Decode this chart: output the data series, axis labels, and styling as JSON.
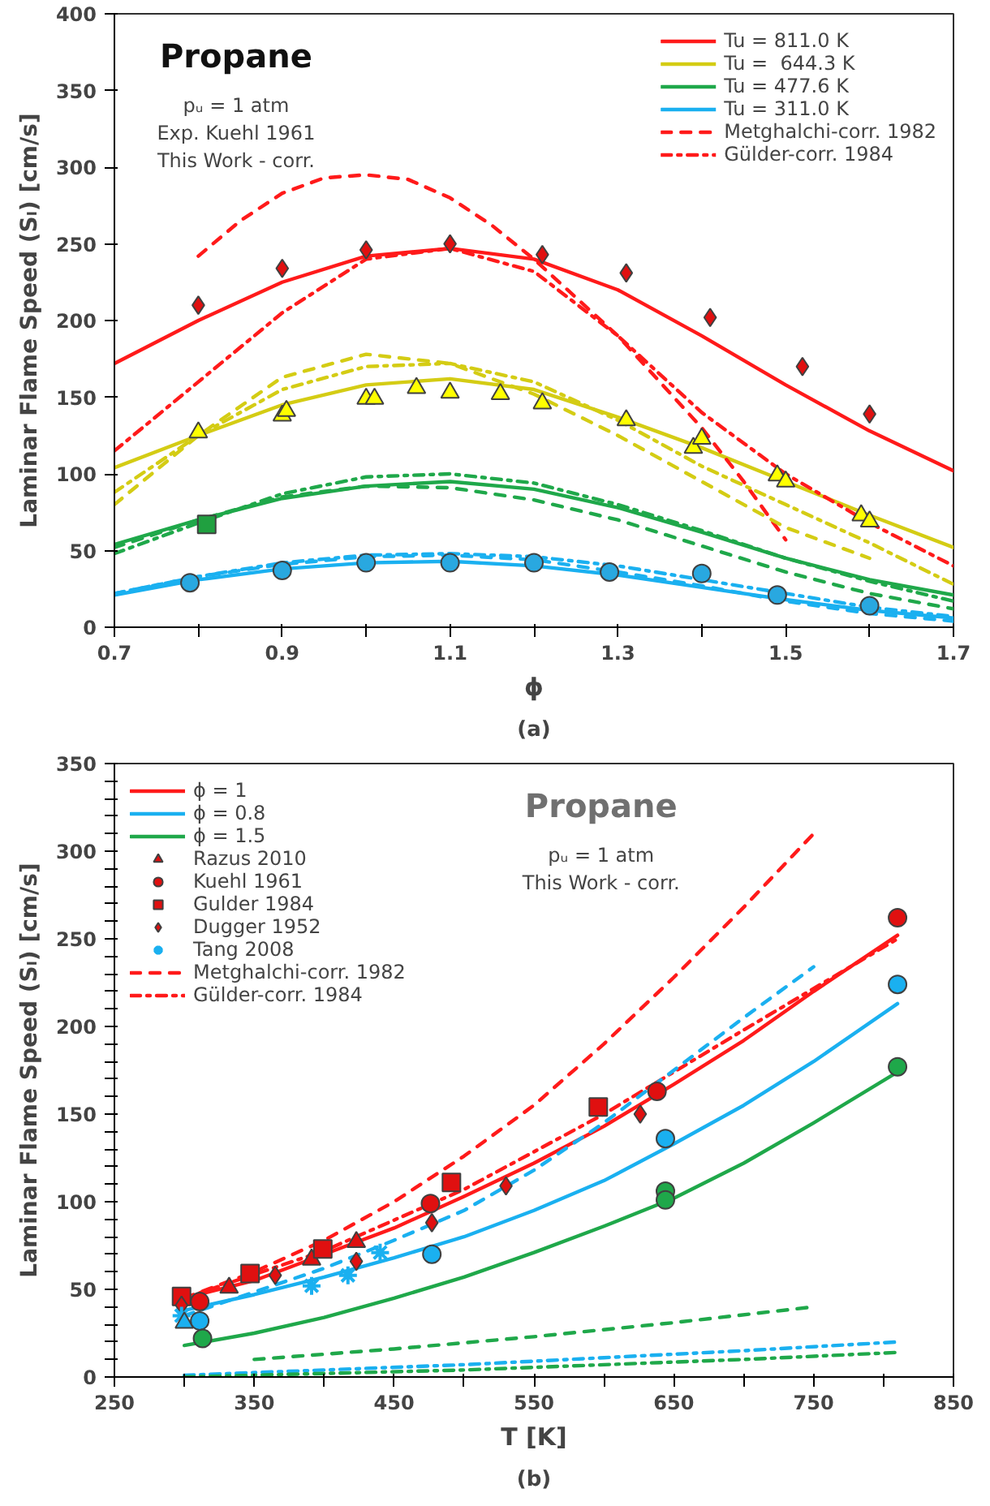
{
  "chart_data": [
    {
      "type": "line",
      "title": "Propane",
      "subtitle": "pᵤ = 1 atm",
      "xlabel": "ϕ",
      "ylabel": "Laminar Flame Speed (Sₗ) [cm/s]",
      "legend": "top right",
      "annotations": [
        "Exp. Kuehl 1961",
        "This Work - corr.",
        "(a)"
      ],
      "xlim": [
        0.7,
        1.7
      ],
      "ylim": [
        0,
        400
      ],
      "xticks": [
        0.7,
        {
          "value": 0.8,
          "label": null
        },
        0.9,
        {
          "value": 1.0,
          "label": null
        },
        1.1,
        {
          "value": 1.2,
          "label": null
        },
        1.3,
        {
          "value": 1.4,
          "label": null
        },
        1.5,
        {
          "value": 1.6,
          "label": null
        },
        1.7
      ],
      "yticks": [
        0,
        50,
        100,
        150,
        200,
        250,
        300,
        350,
        400
      ],
      "series": [
        {
          "name": "Tu = 811.0 K",
          "color": "#ff1a1a",
          "line_style": "solid",
          "x": [
            0.7,
            0.8,
            0.9,
            1.0,
            1.1,
            1.2,
            1.3,
            1.4,
            1.5,
            1.6,
            1.7
          ],
          "values": [
            172,
            200,
            225,
            242,
            247,
            240,
            220,
            190,
            158,
            128,
            102
          ]
        },
        {
          "name": "Tu =  644.3 K",
          "color": "#d4cc14",
          "line_style": "solid",
          "x": [
            0.7,
            0.8,
            0.9,
            1.0,
            1.1,
            1.2,
            1.3,
            1.4,
            1.5,
            1.6,
            1.7
          ],
          "values": [
            104,
            125,
            145,
            158,
            162,
            155,
            137,
            117,
            95,
            73,
            52
          ]
        },
        {
          "name": "Tu = 477.6 K",
          "color": "#1fa84a",
          "line_style": "solid",
          "x": [
            0.7,
            0.8,
            0.9,
            1.0,
            1.1,
            1.2,
            1.3,
            1.4,
            1.5,
            1.6,
            1.7
          ],
          "values": [
            54,
            70,
            84,
            92,
            95,
            90,
            78,
            62,
            45,
            31,
            21
          ]
        },
        {
          "name": "Tu = 311.0 K",
          "color": "#1ab0f0",
          "line_style": "solid",
          "x": [
            0.7,
            0.8,
            0.9,
            1.0,
            1.1,
            1.2,
            1.3,
            1.4,
            1.5,
            1.6,
            1.7
          ],
          "values": [
            21,
            31,
            38,
            42,
            43,
            40,
            34,
            26,
            18,
            11,
            6
          ]
        },
        {
          "name": "Metghalchi-corr. 1982",
          "color": "#ff1a1a",
          "line_style": "dashed",
          "x": [
            0.8,
            0.85,
            0.9,
            0.95,
            1.0,
            1.05,
            1.1,
            1.15,
            1.2,
            1.25,
            1.3,
            1.35,
            1.4,
            1.45,
            1.5
          ],
          "values": [
            242,
            265,
            283,
            293,
            295,
            292,
            280,
            262,
            240,
            215,
            190,
            160,
            130,
            95,
            57
          ]
        },
        {
          "name": "Gülder-corr. 1984",
          "color": "#ff1a1a",
          "line_style": "dashdot",
          "x": [
            0.7,
            0.8,
            0.9,
            1.0,
            1.1,
            1.2,
            1.3,
            1.4,
            1.5,
            1.6,
            1.7
          ],
          "values": [
            115,
            160,
            205,
            240,
            247,
            232,
            190,
            140,
            100,
            68,
            40
          ]
        },
        {
          "color": "#d4cc14",
          "line_style": "dashed",
          "x": [
            0.7,
            0.8,
            0.9,
            1.0,
            1.1,
            1.2,
            1.3,
            1.4,
            1.5,
            1.6
          ],
          "values": [
            80,
            125,
            163,
            178,
            172,
            152,
            125,
            95,
            65,
            45
          ]
        },
        {
          "color": "#d4cc14",
          "line_style": "dashdot",
          "x": [
            0.7,
            0.8,
            0.9,
            1.0,
            1.1,
            1.2,
            1.3,
            1.4,
            1.5,
            1.6,
            1.7
          ],
          "values": [
            88,
            125,
            155,
            170,
            172,
            160,
            135,
            105,
            80,
            55,
            28
          ]
        },
        {
          "color": "#1fa84a",
          "line_style": "dashed",
          "x": [
            0.7,
            0.8,
            0.9,
            1.0,
            1.1,
            1.2,
            1.3,
            1.4,
            1.5,
            1.6,
            1.7
          ],
          "values": [
            52,
            70,
            85,
            92,
            91,
            83,
            70,
            53,
            36,
            22,
            12
          ]
        },
        {
          "color": "#1fa84a",
          "line_style": "dashdot",
          "x": [
            0.7,
            0.8,
            0.9,
            1.0,
            1.1,
            1.2,
            1.3,
            1.4,
            1.5,
            1.6,
            1.7
          ],
          "values": [
            48,
            68,
            87,
            98,
            100,
            94,
            80,
            63,
            45,
            30,
            17
          ]
        },
        {
          "color": "#1ab0f0",
          "line_style": "dashed",
          "x": [
            0.7,
            0.8,
            0.9,
            1.0,
            1.1,
            1.2,
            1.3,
            1.4,
            1.5,
            1.6,
            1.7
          ],
          "values": [
            22,
            33,
            41,
            46,
            47,
            44,
            36,
            27,
            17,
            9,
            4
          ]
        },
        {
          "color": "#1ab0f0",
          "line_style": "dashdot",
          "x": [
            0.7,
            0.8,
            0.9,
            1.0,
            1.1,
            1.2,
            1.3,
            1.4,
            1.5,
            1.6,
            1.7
          ],
          "values": [
            22,
            33,
            42,
            47,
            48,
            46,
            40,
            31,
            22,
            13,
            7
          ]
        },
        {
          "type": "scatter",
          "marker": "diamond",
          "color": "#e01010",
          "x": [
            0.8,
            0.9,
            1.0,
            1.1,
            1.21,
            1.31,
            1.41,
            1.52,
            1.6
          ],
          "values": [
            210,
            234,
            246,
            250,
            243,
            231,
            202,
            170,
            139
          ]
        },
        {
          "type": "scatter",
          "marker": "triangle",
          "color": "#ffff00",
          "x": [
            0.8,
            0.9,
            0.905,
            1.0,
            1.01,
            1.06,
            1.1,
            1.16,
            1.21,
            1.31,
            1.39,
            1.4,
            1.49,
            1.5,
            1.59,
            1.6
          ],
          "values": [
            127,
            138,
            141,
            149,
            149,
            156,
            153,
            152,
            146,
            135,
            117,
            123,
            99,
            95,
            73,
            69
          ]
        },
        {
          "type": "scatter",
          "marker": "square",
          "color": "#20a040",
          "x": [
            0.81
          ],
          "values": [
            67
          ]
        },
        {
          "type": "scatter",
          "marker": "circle",
          "color": "#29a8e0",
          "x": [
            0.79,
            0.9,
            1.0,
            1.1,
            1.2,
            1.29,
            1.4,
            1.49,
            1.6
          ],
          "values": [
            29,
            37,
            42,
            42,
            42,
            36,
            35,
            21,
            14
          ]
        }
      ]
    },
    {
      "type": "line",
      "title": "Propane",
      "subtitle": "pᵤ = 1 atm",
      "xlabel": "T [K]",
      "ylabel": "Laminar Flame Speed (Sₗ) [cm/s]",
      "legend": "top left",
      "annotations": [
        "This Work - corr.",
        "(b)"
      ],
      "xlim": [
        250,
        850
      ],
      "ylim": [
        0,
        350
      ],
      "xticks": [
        250,
        {
          "value": 300,
          "label": null
        },
        350,
        {
          "value": 400,
          "label": null
        },
        450,
        {
          "value": 500,
          "label": null
        },
        550,
        {
          "value": 600,
          "label": null
        },
        650,
        {
          "value": 700,
          "label": null
        },
        750,
        {
          "value": 800,
          "label": null
        },
        850
      ],
      "yticks": [
        0,
        {
          "value": 10,
          "label": null
        },
        {
          "value": 20,
          "label": null
        },
        {
          "value": 30,
          "label": null
        },
        {
          "value": 40,
          "label": null
        },
        50,
        {
          "value": 60,
          "label": null
        },
        {
          "value": 70,
          "label": null
        },
        {
          "value": 80,
          "label": null
        },
        {
          "value": 90,
          "label": null
        },
        100,
        {
          "value": 110,
          "label": null
        },
        {
          "value": 120,
          "label": null
        },
        {
          "value": 130,
          "label": null
        },
        {
          "value": 140,
          "label": null
        },
        150,
        {
          "value": 160,
          "label": null
        },
        {
          "value": 170,
          "label": null
        },
        {
          "value": 180,
          "label": null
        },
        {
          "value": 190,
          "label": null
        },
        200,
        {
          "value": 210,
          "label": null
        },
        {
          "value": 220,
          "label": null
        },
        {
          "value": 230,
          "label": null
        },
        {
          "value": 240,
          "label": null
        },
        250,
        {
          "value": 260,
          "label": null
        },
        {
          "value": 270,
          "label": null
        },
        {
          "value": 280,
          "label": null
        },
        {
          "value": 290,
          "label": null
        },
        300,
        {
          "value": 310,
          "label": null
        },
        {
          "value": 320,
          "label": null
        },
        {
          "value": 330,
          "label": null
        },
        {
          "value": 340,
          "label": null
        },
        350
      ],
      "series": [
        {
          "name": "ϕ = 1",
          "color": "#ff1a1a",
          "line_style": "solid",
          "x": [
            300,
            350,
            400,
            450,
            500,
            550,
            600,
            650,
            700,
            750,
            810
          ],
          "values": [
            45,
            55,
            70,
            85,
            103,
            122,
            143,
            167,
            192,
            220,
            252
          ]
        },
        {
          "name": "ϕ = 0.8",
          "color": "#1ab0f0",
          "line_style": "solid",
          "x": [
            300,
            350,
            400,
            450,
            500,
            550,
            600,
            650,
            700,
            750,
            810
          ],
          "values": [
            38,
            47,
            57,
            68,
            80,
            95,
            112,
            133,
            155,
            180,
            213
          ]
        },
        {
          "name": "ϕ = 1.5",
          "color": "#1fa84a",
          "line_style": "solid",
          "x": [
            300,
            350,
            400,
            450,
            500,
            550,
            600,
            650,
            700,
            750,
            810
          ],
          "values": [
            18,
            25,
            34,
            45,
            57,
            71,
            86,
            102,
            122,
            145,
            174
          ]
        },
        {
          "type": "scatter",
          "name": "Razus 2010",
          "marker": "triangle",
          "color": "#e01010",
          "x": [
            332,
            391,
            423
          ],
          "values": [
            51,
            67,
            77
          ]
        },
        {
          "type": "scatter",
          "name": "Kuehl 1961",
          "marker": "circle",
          "color": "#e01010",
          "x": [
            311,
            476,
            638,
            810
          ],
          "values": [
            43,
            99,
            163,
            262
          ]
        },
        {
          "type": "scatter",
          "name": "Gulder 1984",
          "marker": "square",
          "color": "#e01010",
          "x": [
            298,
            347,
            399,
            491,
            596
          ],
          "values": [
            46,
            59,
            73,
            111,
            154
          ]
        },
        {
          "type": "scatter",
          "name": "Dugger 1952",
          "marker": "diamond",
          "color": "#e01010",
          "x": [
            298,
            365,
            423,
            477,
            530,
            626
          ],
          "values": [
            41,
            58,
            66,
            88,
            109,
            150
          ]
        },
        {
          "type": "scatter",
          "name": "Tang 2008",
          "marker": "cross",
          "color": "#1ab0f0",
          "x": [
            298,
            391,
            417,
            440
          ],
          "values": [
            35,
            52,
            58,
            71
          ]
        },
        {
          "name": "Metghalchi-corr. 1982",
          "color": "#ff1a1a",
          "line_style": "dashed",
          "x": [
            300,
            350,
            400,
            450,
            500,
            550,
            600,
            650,
            700,
            750
          ],
          "values": [
            45,
            60,
            78,
            100,
            126,
            155,
            190,
            228,
            268,
            310
          ]
        },
        {
          "name": "Gülder-corr. 1984",
          "color": "#ff1a1a",
          "line_style": "dashdot",
          "x": [
            300,
            400,
            500,
            600,
            700,
            810
          ],
          "values": [
            45,
            72,
            107,
            150,
            198,
            250
          ]
        },
        {
          "color": "#1ab0f0",
          "line_style": "dashed",
          "x": [
            300,
            400,
            450,
            500,
            550,
            600,
            650,
            700,
            750
          ],
          "values": [
            35,
            62,
            78,
            95,
            118,
            145,
            175,
            205,
            234
          ]
        },
        {
          "color": "#1ab0f0",
          "line_style": "dashdot",
          "x": [
            300,
            400,
            500,
            600,
            700,
            810
          ],
          "values": [
            1,
            4,
            7,
            11,
            15,
            20
          ]
        },
        {
          "color": "#1fa84a",
          "line_style": "dashed",
          "x": [
            350,
            450,
            550,
            650,
            750
          ],
          "values": [
            10,
            16,
            23,
            31,
            40
          ]
        },
        {
          "color": "#1fa84a",
          "line_style": "dashdot",
          "x": [
            300,
            400,
            500,
            600,
            700,
            810
          ],
          "values": [
            0,
            2,
            4,
            7,
            10,
            14
          ]
        },
        {
          "type": "scatter",
          "marker": "triangle",
          "color": "#1ab0f0",
          "x": [
            300
          ],
          "values": [
            31
          ]
        },
        {
          "type": "scatter",
          "marker": "circle",
          "color": "#1ab0f0",
          "x": [
            311,
            477,
            644,
            810
          ],
          "values": [
            32,
            70,
            136,
            224
          ]
        },
        {
          "type": "scatter",
          "marker": "circle",
          "color": "#1fa84a",
          "x": [
            313,
            644,
            644,
            810
          ],
          "values": [
            22,
            106,
            101,
            177
          ]
        }
      ]
    }
  ]
}
